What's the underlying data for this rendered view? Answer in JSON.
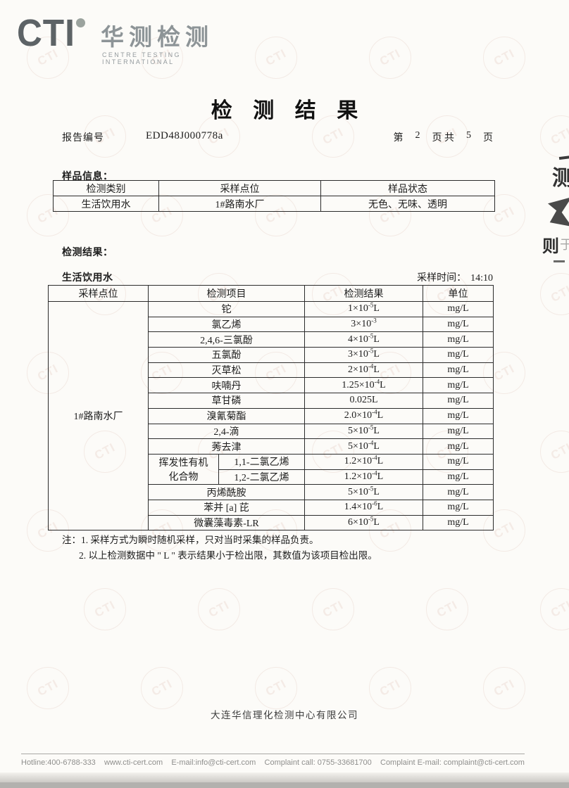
{
  "logo": {
    "acronym": "CTI",
    "cn_name": "华测检测",
    "en_name": "CENTRE TESTING INTERNATIONAL"
  },
  "title": "检 测 结 果",
  "report_meta": {
    "report_no_label": "报告编号",
    "report_no": "EDD48J000778a",
    "page_prefix": "第",
    "page_current": "2",
    "page_mid": "页 共",
    "page_total": "5",
    "page_suffix": "页"
  },
  "sample_info": {
    "section_label": "样品信息：",
    "headers": [
      "检测类别",
      "采样点位",
      "样品状态"
    ],
    "row": [
      "生活饮用水",
      "1#路南水厂",
      "无色、无味、透明"
    ]
  },
  "results": {
    "section_label": "检测结果：",
    "water_type": "生活饮用水",
    "sampling_time_label": "采样时间：",
    "sampling_time": "14:10",
    "headers": [
      "采样点位",
      "检测项目",
      "检测结果",
      "单位"
    ],
    "sampling_point": "1#路南水厂",
    "voc_group_lines": [
      "挥发性有机",
      "化合物"
    ],
    "rows": [
      {
        "item": "铊",
        "result": "1×10^-5^L",
        "unit": "mg/L"
      },
      {
        "item": "氯乙烯",
        "result": "3×10^-3^",
        "unit": "mg/L"
      },
      {
        "item": "2,4,6-三氯酚",
        "result": "4×10^-5^L",
        "unit": "mg/L"
      },
      {
        "item": "五氯酚",
        "result": "3×10^-5^L",
        "unit": "mg/L"
      },
      {
        "item": "灭草松",
        "result": "2×10^-4^L",
        "unit": "mg/L"
      },
      {
        "item": "呋喃丹",
        "result": "1.25×10^-4^L",
        "unit": "mg/L"
      },
      {
        "item": "草甘磷",
        "result": "0.025L",
        "unit": "mg/L"
      },
      {
        "item": "溴氰菊酯",
        "result": "2.0×10^-4^L",
        "unit": "mg/L"
      },
      {
        "item": "2,4-滴",
        "result": "5×10^-5^L",
        "unit": "mg/L"
      },
      {
        "item": "莠去津",
        "result": "5×10^-4^L",
        "unit": "mg/L"
      },
      {
        "item": "1,1-二氯乙烯",
        "result": "1.2×10^-4^L",
        "unit": "mg/L",
        "group_start": true
      },
      {
        "item": "1,2-二氯乙烯",
        "result": "1.2×10^-4^L",
        "unit": "mg/L",
        "in_group": true
      },
      {
        "item": "丙烯酰胺",
        "result": "5×10^-5^L",
        "unit": "mg/L"
      },
      {
        "item": "苯并 [a] 芘",
        "result": "1.4×10^-6^L",
        "unit": "mg/L"
      },
      {
        "item": "微囊藻毒素-LR",
        "result": "6×10^-5^L",
        "unit": "mg/L"
      }
    ]
  },
  "notes": {
    "line1": "注：1. 采样方式为瞬时随机采样，只对当时采集的样品负责。",
    "line2": "2. 以上检测数据中 \" L \" 表示结果小于检出限，其数值为该项目检出限。"
  },
  "footer": {
    "company": "大连华信理化检测中心有限公司",
    "contacts": [
      "Hotline:400-6788-333",
      "www.cti-cert.com",
      "E-mail:info@cti-cert.com",
      "Complaint call: 0755-33681700",
      "Complaint E-mail: complaint@cti-cert.com"
    ]
  },
  "artifacts": {
    "glyph1": "测",
    "glyph2": "则",
    "glyph3": "于"
  }
}
